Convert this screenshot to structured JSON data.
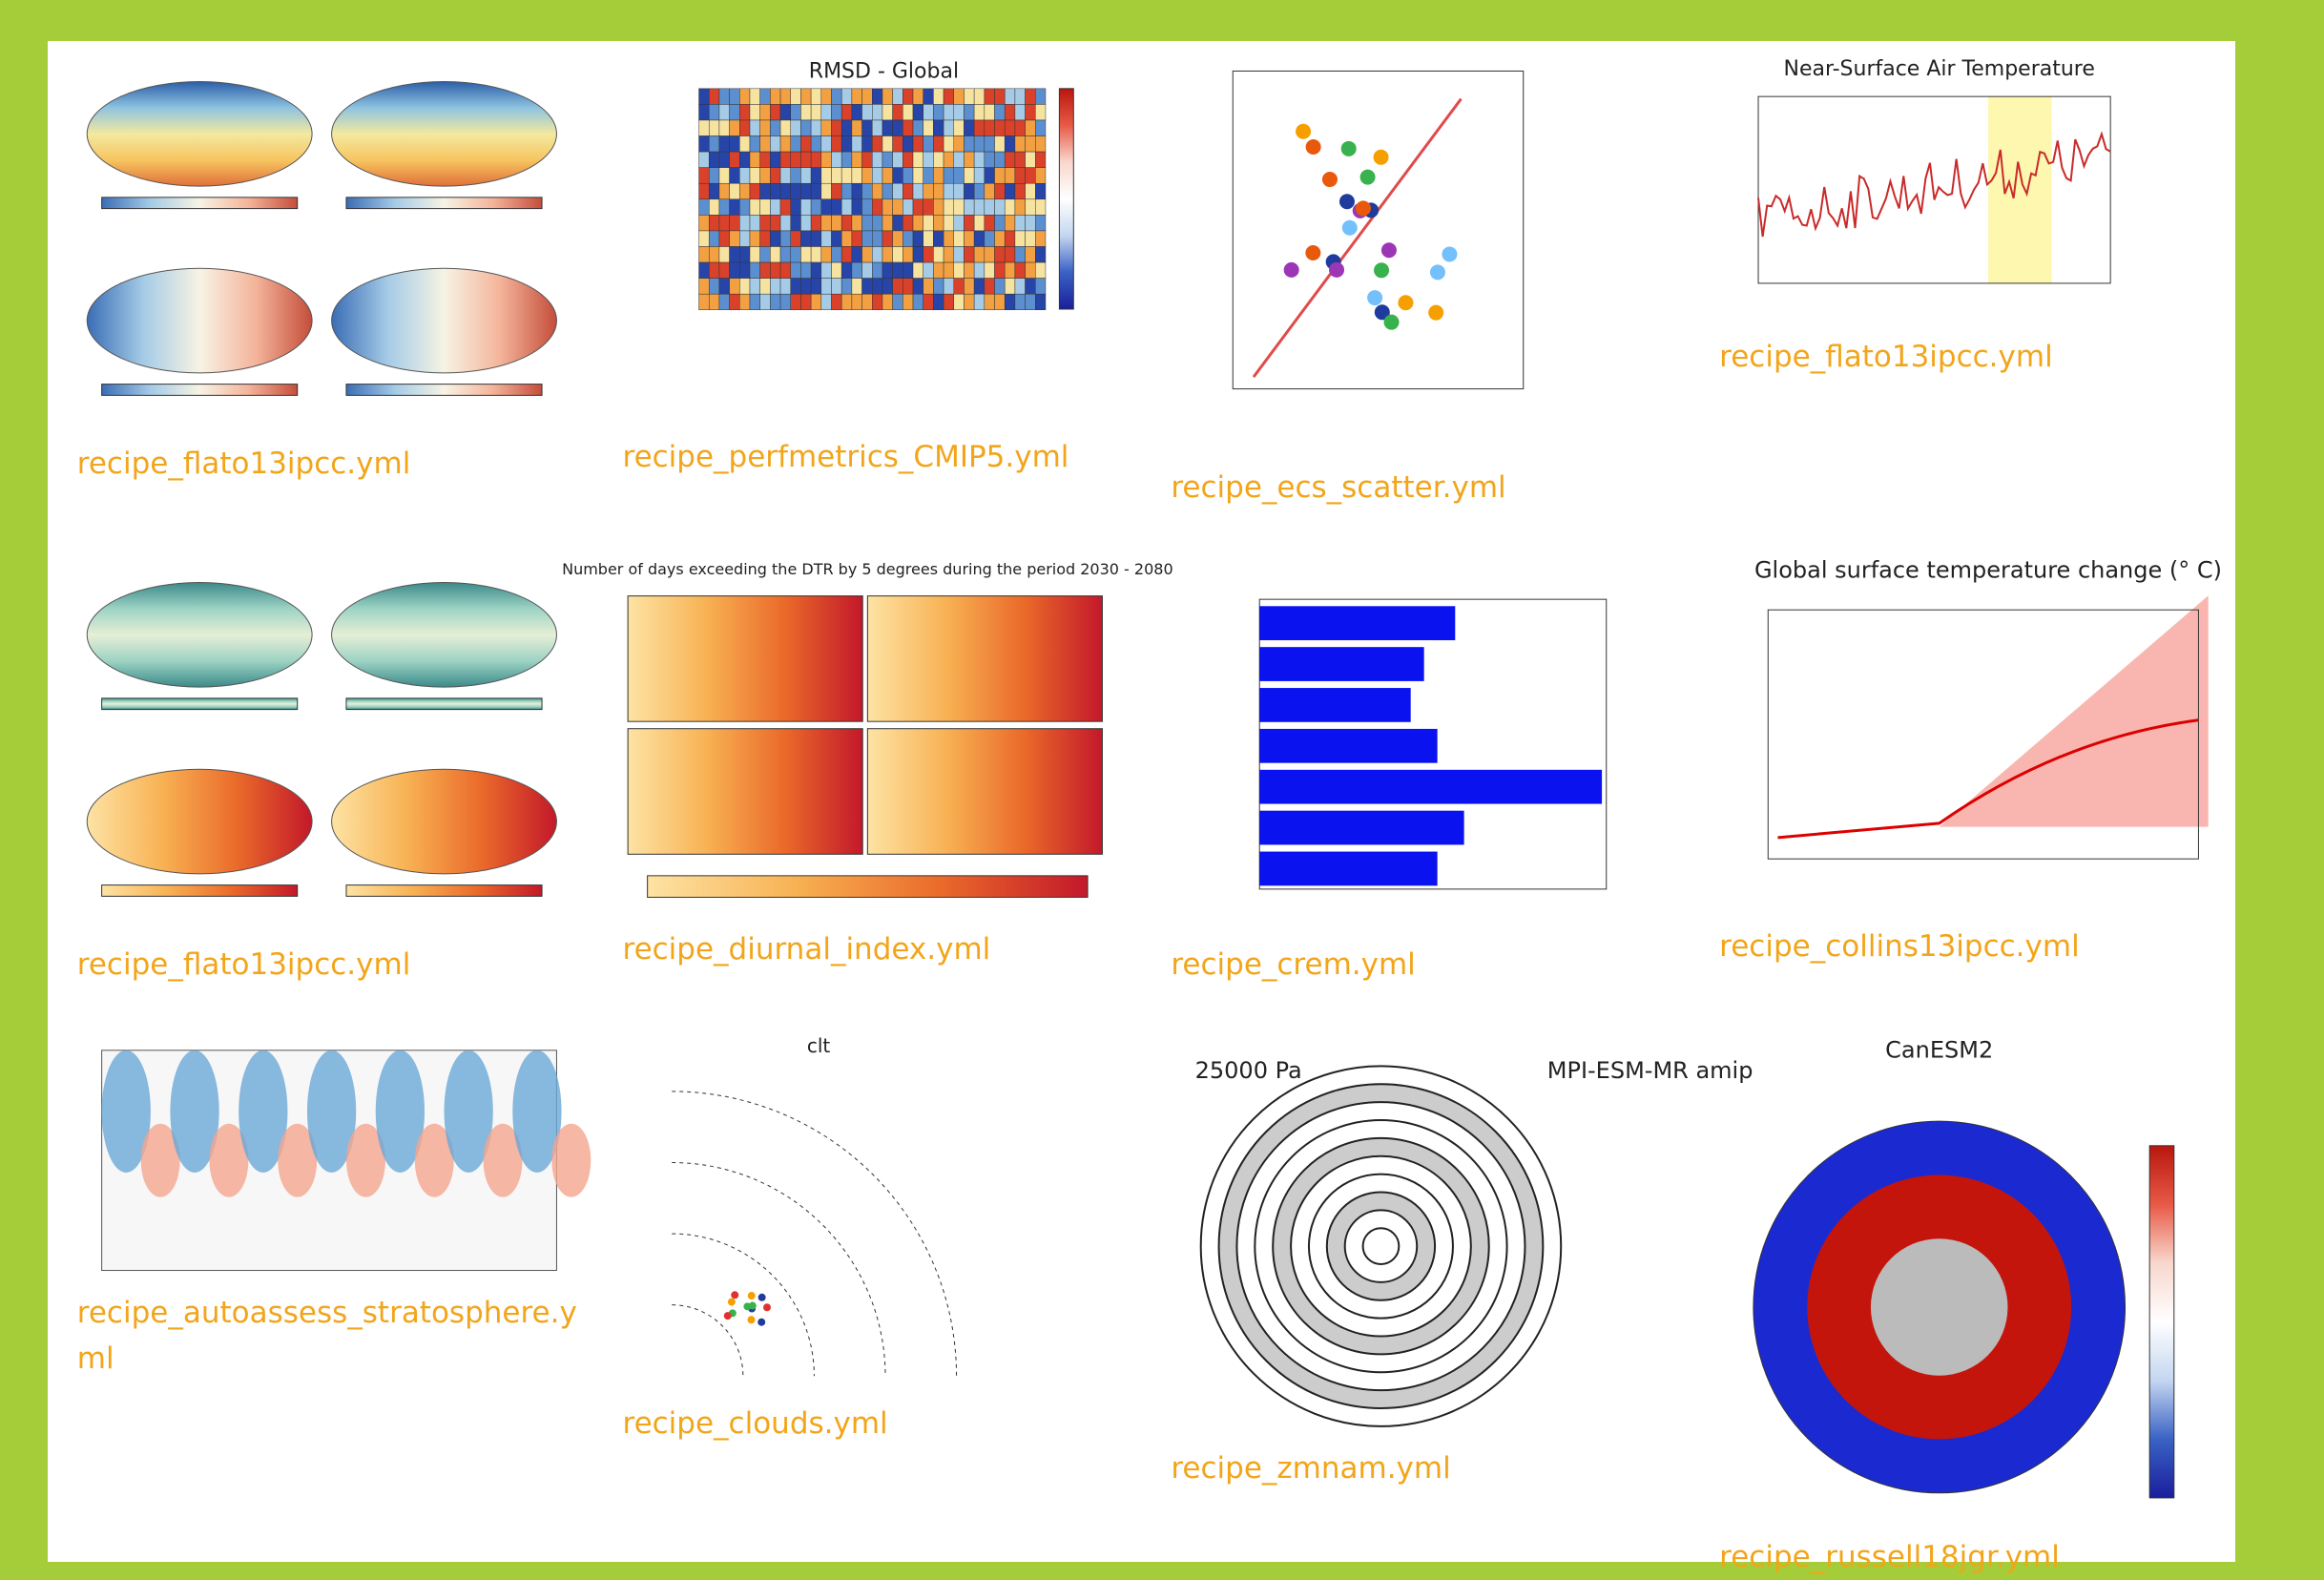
{
  "gallery": {
    "tiles": [
      {
        "caption": "recipe_flato13ipcc.yml"
      },
      {
        "title": "RMSD - Global",
        "caption": "recipe_perfmetrics_CMIP5.yml"
      },
      {
        "caption": "recipe_ecs_scatter.yml"
      },
      {
        "title": "Near-Surface Air Temperature",
        "caption": "recipe_flato13ipcc.yml"
      },
      {
        "caption": "recipe_flato13ipcc.yml"
      },
      {
        "title": "Number of days exceeding the DTR by 5 degrees during the period 2030 - 2080",
        "caption": "recipe_diurnal_index.yml"
      },
      {
        "caption": "recipe_crem.yml"
      },
      {
        "title": "Global surface temperature change (° C)",
        "caption": "recipe_collins13ipcc.yml"
      },
      {
        "caption": "recipe_autoassess_stratosphere.yml"
      },
      {
        "title": "clt",
        "caption": "recipe_clouds.yml"
      },
      {
        "title": "25000 Pa",
        "subtitle": "MPI-ESM-MR amip",
        "caption": "recipe_zmnam.yml"
      },
      {
        "title": "CanESM2",
        "caption": "recipe_russell18jgr.yml"
      }
    ]
  }
}
